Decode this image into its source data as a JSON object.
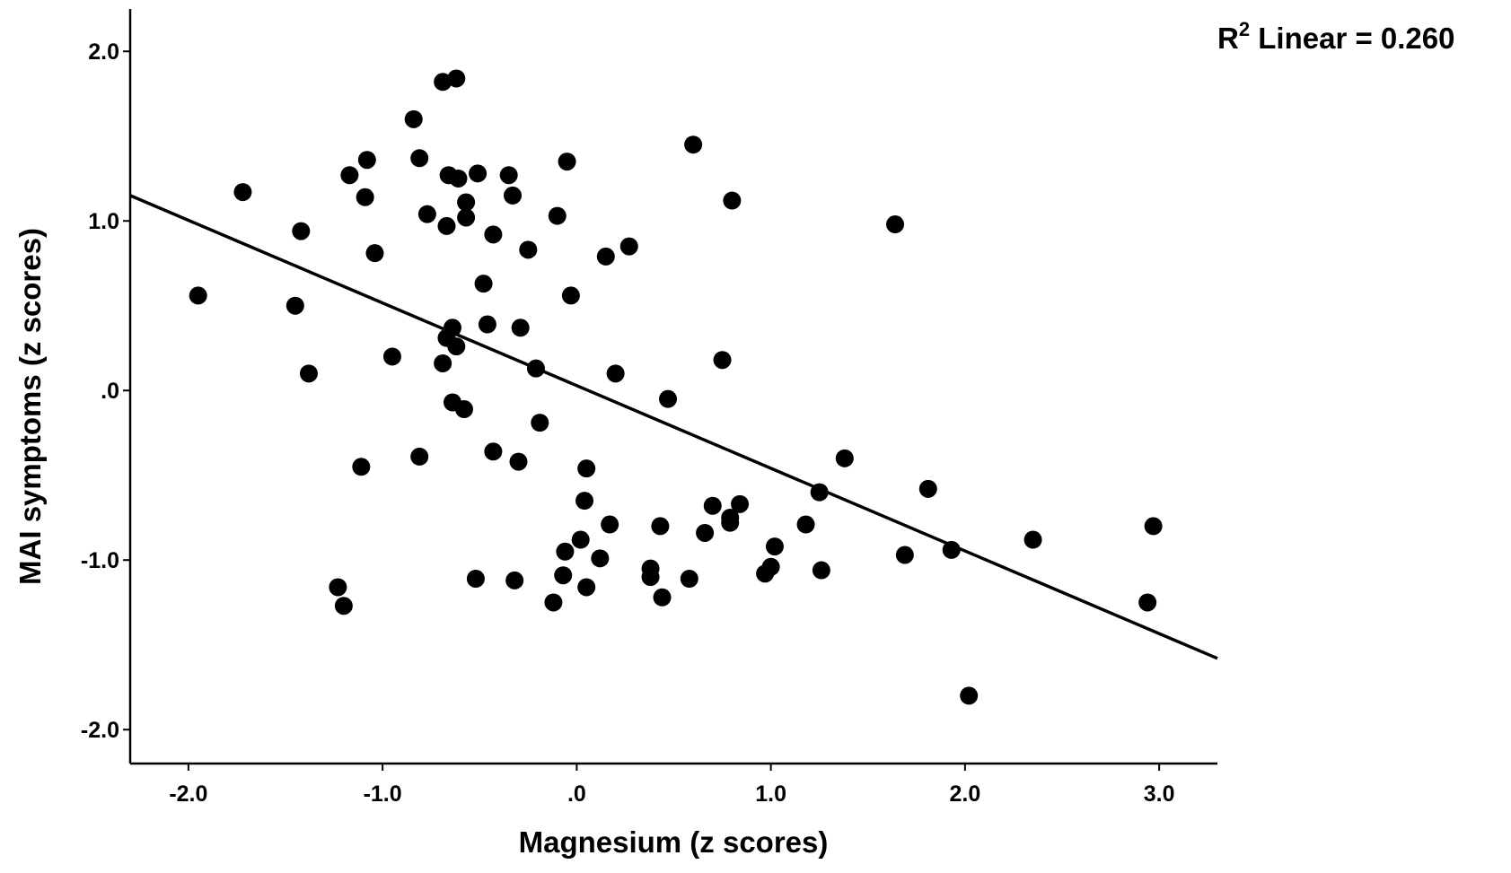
{
  "chart_data": {
    "type": "scatter",
    "xlabel": "Magnesium (z scores)",
    "ylabel": "MAI symptoms (z scores)",
    "xlim": [
      -2.3,
      3.3
    ],
    "ylim": [
      -2.2,
      2.25
    ],
    "xticks": [
      -2.0,
      -1.0,
      0.0,
      1.0,
      2.0,
      3.0
    ],
    "xtick_labels": [
      "-2.0",
      "-1.0",
      ".0",
      "1.0",
      "2.0",
      "3.0"
    ],
    "yticks": [
      2.0,
      1.0,
      0.0,
      -1.0,
      -2.0
    ],
    "ytick_labels": [
      "2.0",
      "1.0",
      ".0",
      "-1.0",
      "-2.0"
    ],
    "grid": false,
    "annotation": {
      "prefix": "R",
      "superscript": "2",
      "text": " Linear = 0.260"
    },
    "fit_line": {
      "x": [
        -2.3,
        3.3
      ],
      "y": [
        1.15,
        -1.58
      ]
    },
    "points": [
      {
        "x": -1.95,
        "y": 0.56
      },
      {
        "x": -1.72,
        "y": 1.17
      },
      {
        "x": -1.45,
        "y": 0.5
      },
      {
        "x": -1.42,
        "y": 0.94
      },
      {
        "x": -1.38,
        "y": 0.1
      },
      {
        "x": -1.23,
        "y": -1.16
      },
      {
        "x": -1.2,
        "y": -1.27
      },
      {
        "x": -1.17,
        "y": 1.27
      },
      {
        "x": -1.11,
        "y": -0.45
      },
      {
        "x": -1.09,
        "y": 1.14
      },
      {
        "x": -1.08,
        "y": 1.36
      },
      {
        "x": -1.04,
        "y": 0.81
      },
      {
        "x": -0.95,
        "y": 0.2
      },
      {
        "x": -0.84,
        "y": 1.6
      },
      {
        "x": -0.81,
        "y": 1.37
      },
      {
        "x": -0.81,
        "y": -0.39
      },
      {
        "x": -0.77,
        "y": 1.04
      },
      {
        "x": -0.69,
        "y": 1.82
      },
      {
        "x": -0.69,
        "y": 0.16
      },
      {
        "x": -0.67,
        "y": 0.97
      },
      {
        "x": -0.67,
        "y": 0.31
      },
      {
        "x": -0.66,
        "y": 1.27
      },
      {
        "x": -0.64,
        "y": 0.37
      },
      {
        "x": -0.64,
        "y": -0.07
      },
      {
        "x": -0.62,
        "y": 1.84
      },
      {
        "x": -0.62,
        "y": 0.26
      },
      {
        "x": -0.61,
        "y": 1.25
      },
      {
        "x": -0.58,
        "y": -0.11
      },
      {
        "x": -0.57,
        "y": 1.11
      },
      {
        "x": -0.57,
        "y": 1.02
      },
      {
        "x": -0.52,
        "y": -1.11
      },
      {
        "x": -0.51,
        "y": 1.28
      },
      {
        "x": -0.48,
        "y": 0.63
      },
      {
        "x": -0.46,
        "y": 0.39
      },
      {
        "x": -0.43,
        "y": 0.92
      },
      {
        "x": -0.43,
        "y": -0.36
      },
      {
        "x": -0.35,
        "y": 1.27
      },
      {
        "x": -0.33,
        "y": 1.15
      },
      {
        "x": -0.32,
        "y": -1.12
      },
      {
        "x": -0.3,
        "y": -0.42
      },
      {
        "x": -0.29,
        "y": 0.37
      },
      {
        "x": -0.25,
        "y": 0.83
      },
      {
        "x": -0.21,
        "y": 0.13
      },
      {
        "x": -0.19,
        "y": -0.19
      },
      {
        "x": -0.12,
        "y": -1.25
      },
      {
        "x": -0.1,
        "y": 1.03
      },
      {
        "x": -0.07,
        "y": -1.09
      },
      {
        "x": -0.06,
        "y": -0.95
      },
      {
        "x": -0.05,
        "y": 1.35
      },
      {
        "x": -0.03,
        "y": 0.56
      },
      {
        "x": 0.02,
        "y": -0.88
      },
      {
        "x": 0.04,
        "y": -0.65
      },
      {
        "x": 0.05,
        "y": -0.46
      },
      {
        "x": 0.05,
        "y": -1.16
      },
      {
        "x": 0.12,
        "y": -0.99
      },
      {
        "x": 0.15,
        "y": 0.79
      },
      {
        "x": 0.17,
        "y": -0.79
      },
      {
        "x": 0.2,
        "y": 0.1
      },
      {
        "x": 0.27,
        "y": 0.85
      },
      {
        "x": 0.38,
        "y": -1.05
      },
      {
        "x": 0.38,
        "y": -1.1
      },
      {
        "x": 0.43,
        "y": -0.8
      },
      {
        "x": 0.44,
        "y": -1.22
      },
      {
        "x": 0.47,
        "y": -0.05
      },
      {
        "x": 0.58,
        "y": -1.11
      },
      {
        "x": 0.6,
        "y": 1.45
      },
      {
        "x": 0.66,
        "y": -0.84
      },
      {
        "x": 0.7,
        "y": -0.68
      },
      {
        "x": 0.75,
        "y": 0.18
      },
      {
        "x": 0.79,
        "y": -0.75
      },
      {
        "x": 0.79,
        "y": -0.78
      },
      {
        "x": 0.8,
        "y": 1.12
      },
      {
        "x": 0.84,
        "y": -0.67
      },
      {
        "x": 0.97,
        "y": -1.08
      },
      {
        "x": 1.0,
        "y": -1.04
      },
      {
        "x": 1.02,
        "y": -0.92
      },
      {
        "x": 1.18,
        "y": -0.79
      },
      {
        "x": 1.25,
        "y": -0.6
      },
      {
        "x": 1.26,
        "y": -1.06
      },
      {
        "x": 1.38,
        "y": -0.4
      },
      {
        "x": 1.64,
        "y": 0.98
      },
      {
        "x": 1.69,
        "y": -0.97
      },
      {
        "x": 1.81,
        "y": -0.58
      },
      {
        "x": 1.93,
        "y": -0.94
      },
      {
        "x": 2.02,
        "y": -1.8
      },
      {
        "x": 2.35,
        "y": -0.88
      },
      {
        "x": 2.94,
        "y": -1.25
      },
      {
        "x": 2.97,
        "y": -0.8
      }
    ]
  }
}
